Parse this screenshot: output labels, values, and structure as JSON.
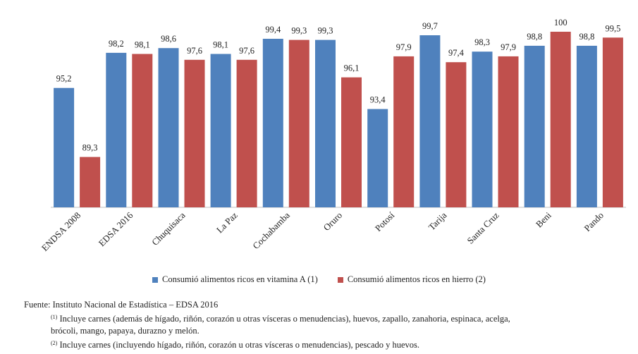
{
  "chart_data": {
    "type": "bar",
    "categories": [
      "ENDSA 2008",
      "EDSA 2016",
      "Chuquisaca",
      "La Paz",
      "Cochabamba",
      "Oruro",
      "Potosí",
      "Tarija",
      "Santa Cruz",
      "Beni",
      "Pando"
    ],
    "series": [
      {
        "name": "Consumió alimentos ricos en vitamina A (1)",
        "color": "#4f81bd",
        "values": [
          95.2,
          98.2,
          98.6,
          98.1,
          99.4,
          99.3,
          93.4,
          99.7,
          98.3,
          98.8,
          98.8
        ],
        "labels": [
          "95,2",
          "98,2",
          "98,6",
          "98,1",
          "99,4",
          "99,3",
          "93,4",
          "99,7",
          "98,3",
          "98,8",
          "98,8"
        ]
      },
      {
        "name": "Consumió alimentos ricos en hierro (2)",
        "color": "#c0504d",
        "values": [
          89.3,
          98.1,
          97.6,
          97.6,
          99.3,
          96.1,
          97.9,
          97.4,
          97.9,
          100,
          99.5
        ],
        "labels": [
          "89,3",
          "98,1",
          "97,6",
          "97,6",
          "99,3",
          "96,1",
          "97,9",
          "97,4",
          "97,9",
          "100",
          "99,5"
        ]
      }
    ],
    "ylim": [
      85,
      100
    ],
    "grid": false,
    "legend_position": "bottom"
  },
  "notes": {
    "source": "Fuente: Instituto Nacional de Estadística –  EDSA 2016",
    "note1_marker": "(1)",
    "note1_line1": "Incluye carnes (además de hígado, riñón, corazón u otras vísceras o menudencias), huevos, zapallo, zanahoria, espinaca, acelga,",
    "note1_line2": "brócoli, mango, papaya, durazno y melón.",
    "note2_marker": "(2)",
    "note2_text": "Incluye carnes (incluyendo hígado, riñón, corazón u otras vísceras o menudencias), pescado y huevos."
  }
}
